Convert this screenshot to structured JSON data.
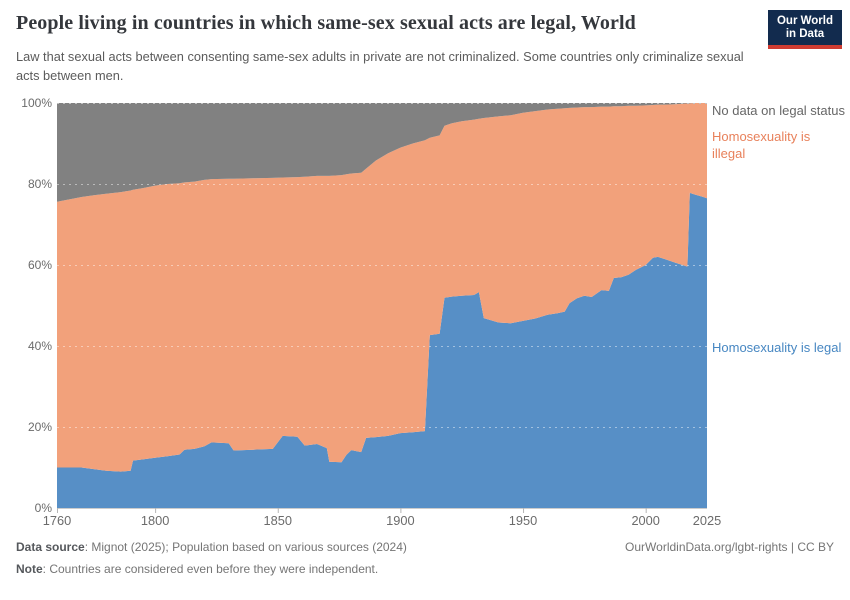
{
  "header": {
    "title": "People living in countries in which same-sex sexual acts are legal, World",
    "subtitle": "Law that sexual acts between consenting same-sex adults in private are not criminalized. Some countries only criminalize sexual acts between men.",
    "logo": {
      "line1": "Our World",
      "line2": "in Data"
    }
  },
  "legend": {
    "no_data": "No data on legal status",
    "illegal": "Homosexuality is illegal",
    "legal": "Homosexuality is legal"
  },
  "footer": {
    "source_label": "Data source",
    "source_text": ": Mignot (2025); Population based on various sources (2024)",
    "note_label": "Note",
    "note_text": ": Countries are considered even before they were independent.",
    "link": "OurWorldinData.org/lgbt-rights | CC BY"
  },
  "colors": {
    "legal_area": "#578fc6",
    "illegal_area": "#f2a17b",
    "nodata_area": "#818181",
    "logo_navy": "#122b4e",
    "logo_red": "#cf3c32",
    "grid_line": "rgba(255,255,255,0.45)",
    "top_grid_line": "#c2c2c2",
    "axis_line": "#cccccc",
    "tick_mark": "#b5b5b5"
  },
  "chart_data": {
    "type": "area",
    "stacked": true,
    "unit": "%",
    "title": "People living in countries in which same-sex sexual acts are legal, World",
    "xlabel": "",
    "ylabel": "",
    "xlim": [
      1760,
      2025
    ],
    "ylim": [
      0,
      100
    ],
    "x_ticks": [
      1760,
      1800,
      1850,
      1900,
      1950,
      2000,
      2025
    ],
    "y_ticks": [
      {
        "v": 0,
        "label": "0%"
      },
      {
        "v": 20,
        "label": "20%"
      },
      {
        "v": 40,
        "label": "40%"
      },
      {
        "v": 60,
        "label": "60%"
      },
      {
        "v": 80,
        "label": "80%"
      },
      {
        "v": 100,
        "label": "100%"
      }
    ],
    "grid": "dashed",
    "legend_position": "right",
    "x": [
      1760,
      1765,
      1770,
      1775,
      1780,
      1786,
      1790,
      1791,
      1795,
      1800,
      1805,
      1810,
      1812,
      1816,
      1820,
      1823,
      1830,
      1832,
      1840,
      1848,
      1852,
      1858,
      1861,
      1866,
      1870,
      1871,
      1876,
      1878,
      1880,
      1884,
      1886,
      1890,
      1895,
      1900,
      1905,
      1910,
      1912,
      1916,
      1918,
      1921,
      1925,
      1930,
      1932,
      1934,
      1940,
      1945,
      1950,
      1955,
      1960,
      1964,
      1967,
      1969,
      1972,
      1975,
      1978,
      1982,
      1985,
      1987,
      1990,
      1993,
      1996,
      2000,
      2003,
      2005,
      2008,
      2012,
      2015,
      2017,
      2018,
      2020,
      2023,
      2025
    ],
    "series": [
      {
        "name": "Homosexuality is legal",
        "color": "#578fc6",
        "values": [
          10,
          10,
          10,
          9.6,
          9.2,
          9,
          9.2,
          11.7,
          12,
          12.4,
          12.8,
          13.2,
          14.4,
          14.6,
          15.2,
          16.2,
          16,
          14.2,
          14.4,
          14.6,
          17.8,
          17.6,
          15.4,
          15.8,
          14.8,
          11.4,
          11.3,
          13.1,
          14.3,
          13.8,
          17.3,
          17.5,
          17.8,
          18.5,
          18.7,
          19,
          42.7,
          43,
          51.9,
          52.2,
          52.4,
          52.6,
          53.3,
          46.9,
          45.8,
          45.6,
          46.2,
          46.8,
          47.7,
          48.1,
          48.5,
          50.6,
          51.8,
          52.4,
          52.1,
          53.8,
          53.6,
          56.8,
          57,
          57.6,
          58.8,
          60,
          61.8,
          62,
          61.4,
          60.6,
          60,
          59.6,
          77.8,
          77.4,
          76.9,
          76.5
        ]
      },
      {
        "name": "Homosexuality is illegal",
        "color": "#f2a17b",
        "values": [
          65.6,
          66.2,
          66.8,
          67.6,
          68.4,
          69,
          69.2,
          66.9,
          67,
          67.2,
          67.2,
          67,
          66,
          66,
          65.8,
          65,
          65.3,
          67.1,
          67,
          66.9,
          63.8,
          64.1,
          66.4,
          66.2,
          67.2,
          70.6,
          70.9,
          69.3,
          68.3,
          69,
          66.5,
          68.3,
          69.8,
          70.5,
          71.3,
          71.8,
          48.7,
          49,
          42.5,
          42.8,
          43.1,
          43.3,
          42.8,
          49.4,
          50.9,
          51.4,
          51.4,
          51.2,
          50.7,
          50.5,
          50.2,
          48.2,
          47.1,
          46.6,
          46.9,
          45.3,
          45.5,
          42.4,
          42.2,
          41.7,
          40.5,
          39.4,
          37.7,
          37.6,
          38.2,
          39.1,
          39.8,
          40.3,
          22.1,
          22.6,
          23.1,
          23.5
        ]
      },
      {
        "name": "No data on legal status",
        "color": "#818181",
        "values": [
          24.4,
          23.8,
          23.2,
          22.8,
          22.4,
          22,
          21.6,
          21.4,
          21,
          20.4,
          20,
          19.8,
          19.6,
          19.4,
          19,
          18.8,
          18.7,
          18.7,
          18.6,
          18.5,
          18.4,
          18.3,
          18.2,
          18,
          18,
          18,
          17.8,
          17.6,
          17.4,
          17.2,
          16.2,
          14.2,
          12.4,
          11,
          10,
          9.2,
          8.6,
          8,
          5.6,
          5,
          4.5,
          4.1,
          3.9,
          3.7,
          3.3,
          3,
          2.4,
          2,
          1.6,
          1.4,
          1.3,
          1.2,
          1.1,
          1,
          1,
          0.9,
          0.9,
          0.8,
          0.8,
          0.7,
          0.7,
          0.6,
          0.5,
          0.4,
          0.4,
          0.3,
          0.2,
          0.1,
          0.1,
          0,
          0,
          0
        ]
      }
    ]
  }
}
